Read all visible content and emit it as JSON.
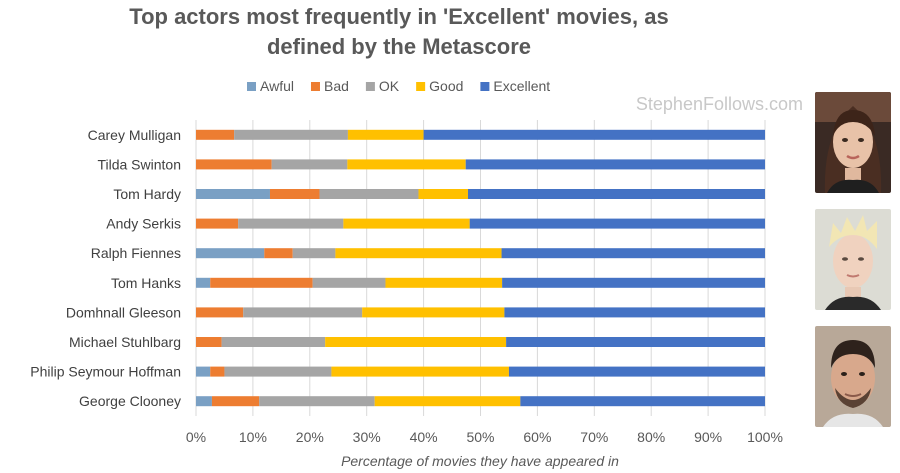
{
  "watermark": "StephenFollows.com",
  "chart_data": {
    "type": "bar",
    "orientation": "horizontal",
    "stacked": true,
    "title_lines": [
      "Top actors most frequently in 'Excellent' movies, as",
      "defined by the Metascore"
    ],
    "xlabel": "Percentage of movies they have appeared in",
    "ylabel": "",
    "xlim": [
      0,
      100
    ],
    "x_ticks": [
      "0%",
      "10%",
      "20%",
      "30%",
      "40%",
      "50%",
      "60%",
      "70%",
      "80%",
      "90%",
      "100%"
    ],
    "categories": [
      "Carey Mulligan",
      "Tilda Swinton",
      "Tom Hardy",
      "Andy Serkis",
      "Ralph Fiennes",
      "Tom Hanks",
      "Domhnall Gleeson",
      "Michael Stuhlbarg",
      "Philip Seymour Hoffman",
      "George Clooney"
    ],
    "series": [
      {
        "name": "Awful",
        "color": "#7aa0c4",
        "values": [
          0,
          0,
          13,
          0,
          12,
          2.5,
          0,
          0,
          2.5,
          2.8
        ]
      },
      {
        "name": "Bad",
        "color": "#ed7d31",
        "values": [
          6.7,
          13.3,
          8.7,
          7.4,
          5,
          18,
          8.3,
          4.5,
          2.5,
          8.3
        ]
      },
      {
        "name": "OK",
        "color": "#a5a5a5",
        "values": [
          20,
          13.3,
          17.4,
          18.5,
          7.5,
          12.8,
          20.9,
          18.2,
          18.8,
          20.3
        ]
      },
      {
        "name": "Good",
        "color": "#ffc000",
        "values": [
          13.3,
          20.8,
          8.7,
          22.2,
          29.2,
          20.5,
          25,
          31.8,
          31.2,
          25.6
        ]
      },
      {
        "name": "Excellent",
        "color": "#4472c4",
        "values": [
          60,
          52.6,
          52.2,
          51.9,
          46.3,
          46.2,
          45.8,
          45.5,
          45,
          43
        ]
      }
    ]
  }
}
